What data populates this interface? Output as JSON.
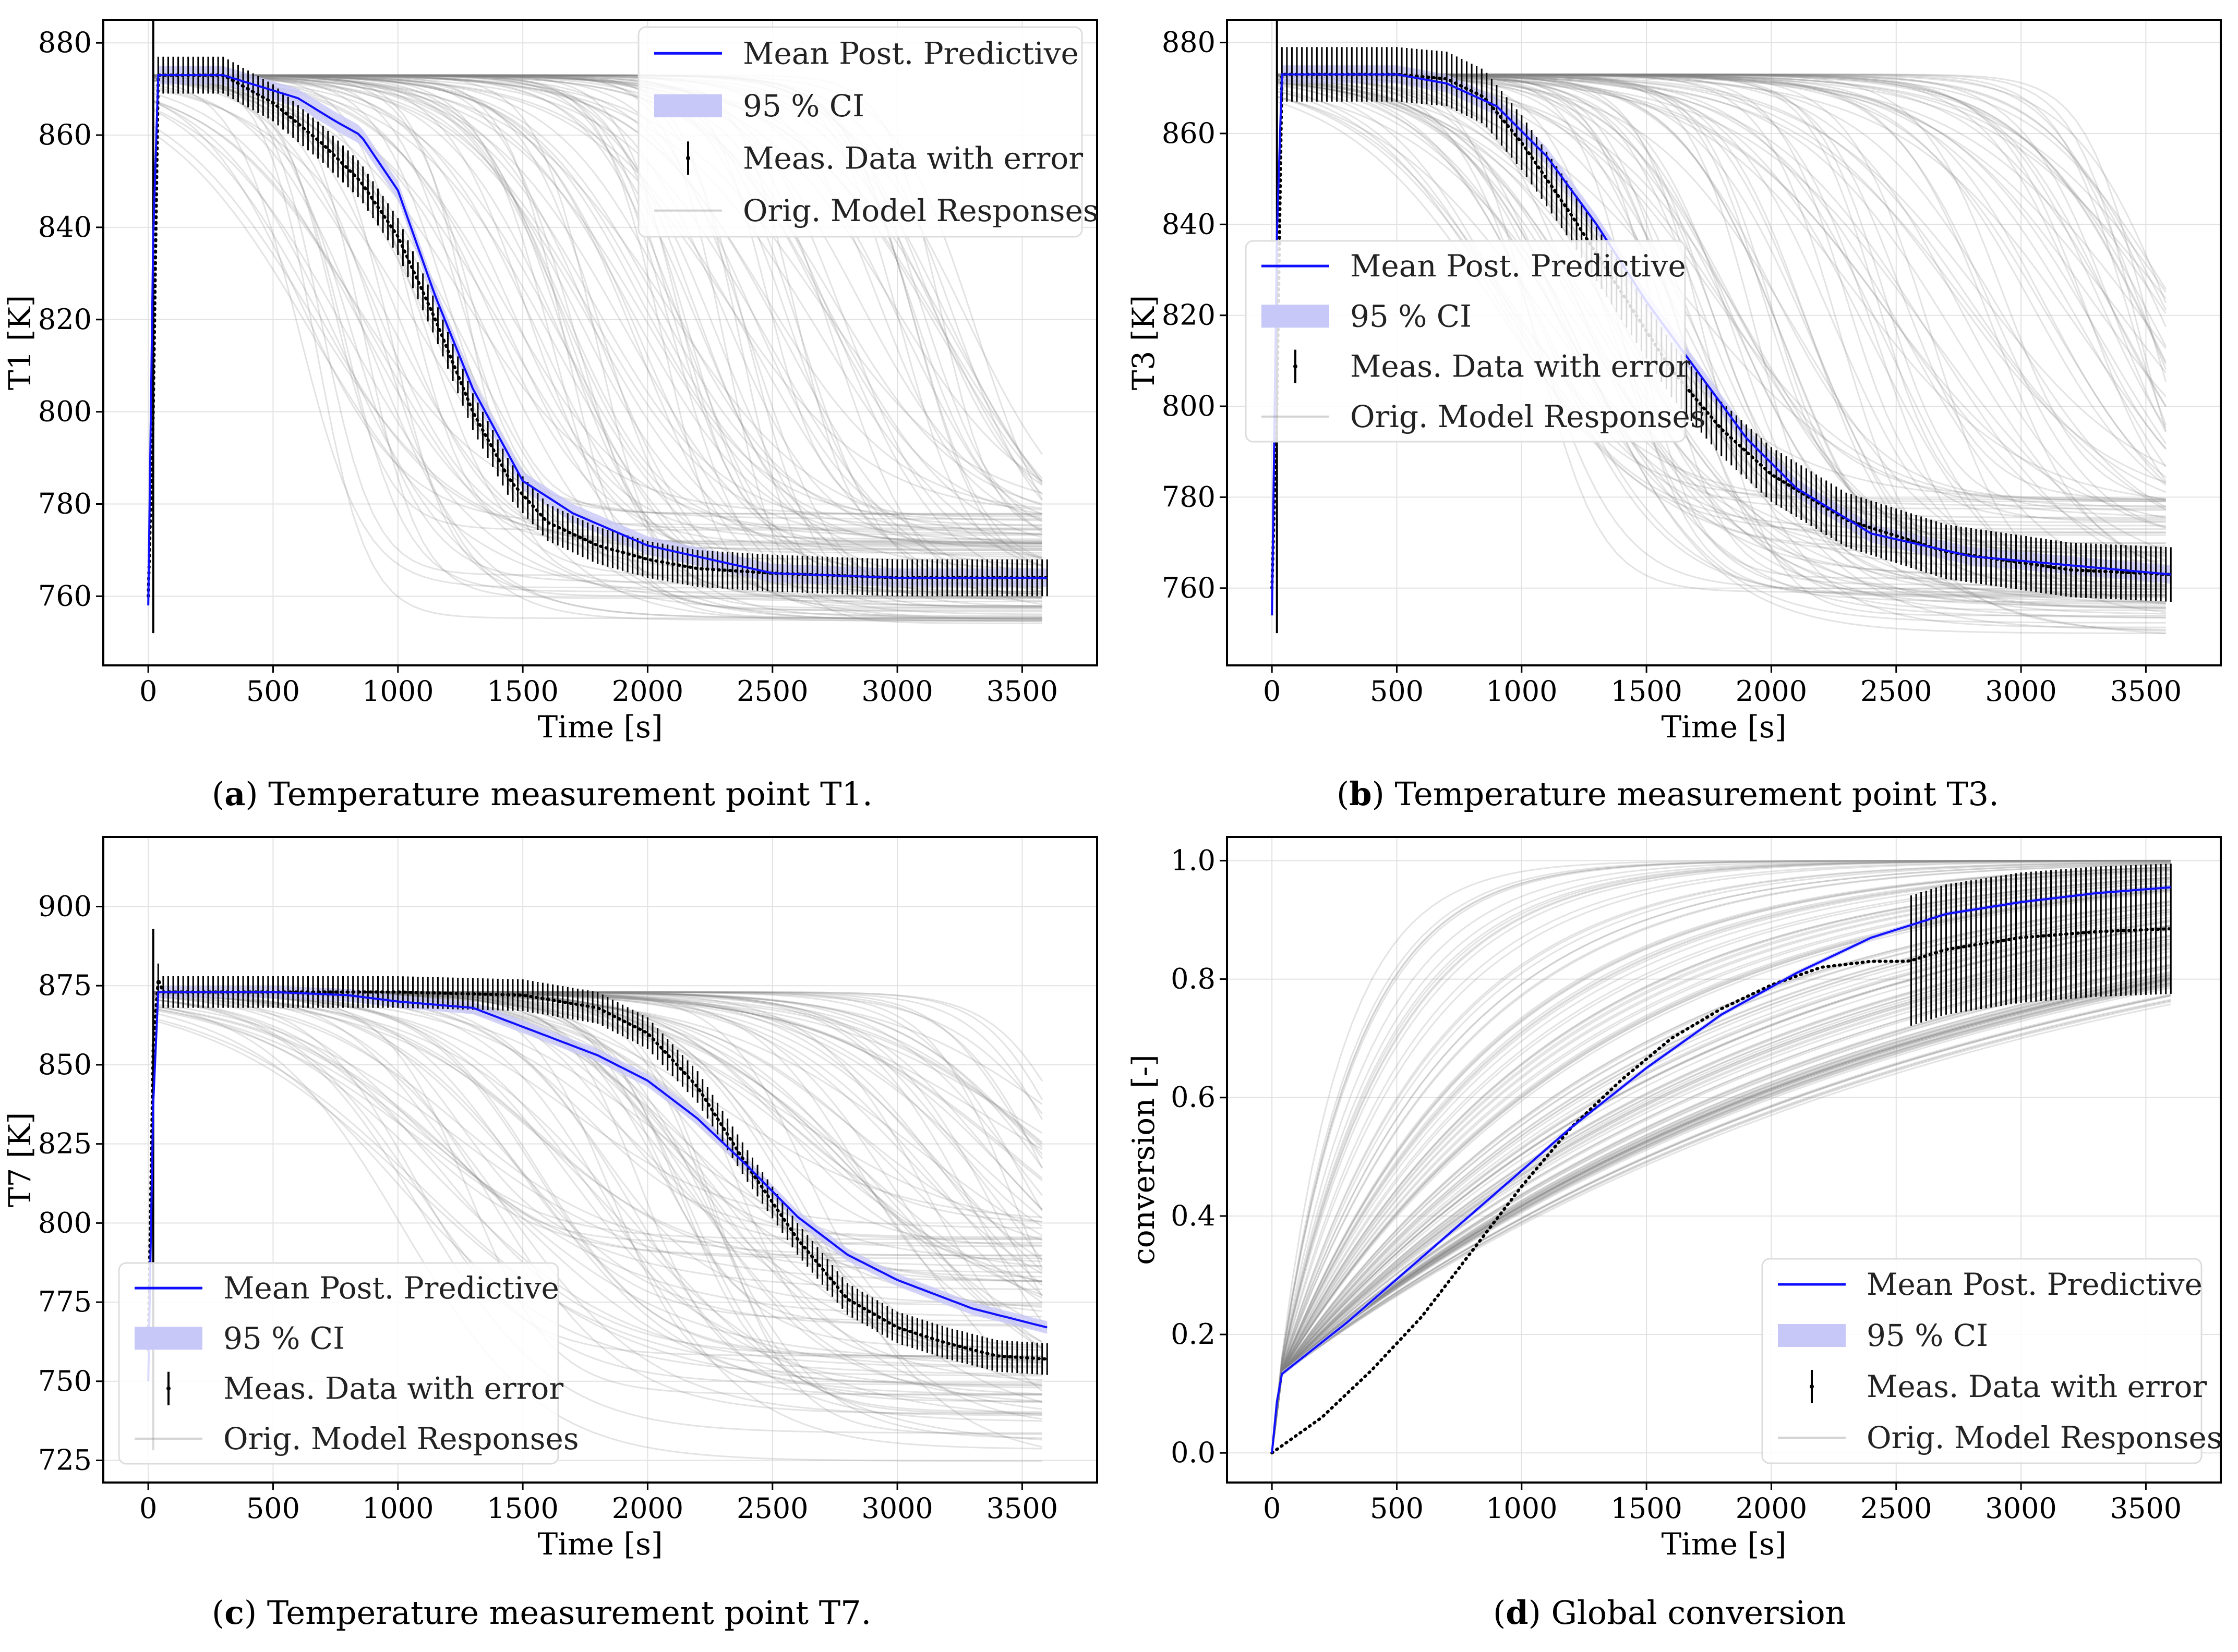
{
  "chart_data": [
    {
      "type": "line",
      "panel": "a",
      "ylabel": "T1 [K]",
      "xlabel": "Time [s]",
      "xlim": [
        -180,
        3800
      ],
      "ylim": [
        745,
        885
      ],
      "xticks": [
        0,
        500,
        1000,
        1500,
        2000,
        2500,
        3000,
        3500
      ],
      "yticks": [
        760,
        780,
        800,
        820,
        840,
        860,
        880
      ],
      "legend_position": "top-right",
      "mean_post_predictive": [
        [
          0,
          758
        ],
        [
          15,
          820
        ],
        [
          30,
          873
        ],
        [
          300,
          873
        ],
        [
          600,
          868
        ],
        [
          750,
          863
        ],
        [
          850,
          860
        ],
        [
          1000,
          848
        ],
        [
          1150,
          825
        ],
        [
          1300,
          805
        ],
        [
          1500,
          785
        ],
        [
          1700,
          778
        ],
        [
          2000,
          771
        ],
        [
          2500,
          765
        ],
        [
          3000,
          764
        ],
        [
          3600,
          764
        ]
      ],
      "ci_halfwidth": 2,
      "measured": [
        [
          0,
          760
        ],
        [
          20,
          800
        ],
        [
          40,
          873
        ],
        [
          300,
          873
        ],
        [
          500,
          867
        ],
        [
          700,
          858
        ],
        [
          850,
          850
        ],
        [
          1000,
          838
        ],
        [
          1150,
          820
        ],
        [
          1300,
          800
        ],
        [
          1450,
          785
        ],
        [
          1600,
          776
        ],
        [
          1800,
          771
        ],
        [
          2000,
          768
        ],
        [
          2200,
          766
        ],
        [
          2500,
          765
        ],
        [
          3000,
          764
        ],
        [
          3600,
          764
        ]
      ],
      "error_halfwidth": 4,
      "model_family": {
        "count": 120,
        "start": 873,
        "t_mid_range": [
          600,
          3400
        ],
        "width_range": [
          100,
          320
        ],
        "final_range": [
          754,
          778
        ]
      }
    },
    {
      "type": "line",
      "panel": "b",
      "ylabel": "T3 [K]",
      "xlabel": "Time [s]",
      "xlim": [
        -180,
        3800
      ],
      "ylim": [
        743,
        885
      ],
      "xticks": [
        0,
        500,
        1000,
        1500,
        2000,
        2500,
        3000,
        3500
      ],
      "yticks": [
        760,
        780,
        800,
        820,
        840,
        860,
        880
      ],
      "legend_position": "center-left",
      "mean_post_predictive": [
        [
          0,
          754
        ],
        [
          15,
          820
        ],
        [
          30,
          873
        ],
        [
          500,
          873
        ],
        [
          700,
          871
        ],
        [
          900,
          866
        ],
        [
          1100,
          855
        ],
        [
          1300,
          840
        ],
        [
          1500,
          823
        ],
        [
          1700,
          808
        ],
        [
          1900,
          793
        ],
        [
          2100,
          782
        ],
        [
          2400,
          772
        ],
        [
          2800,
          767
        ],
        [
          3200,
          765
        ],
        [
          3600,
          763
        ]
      ],
      "ci_halfwidth": 2,
      "measured": [
        [
          0,
          760
        ],
        [
          20,
          800
        ],
        [
          40,
          873
        ],
        [
          500,
          873
        ],
        [
          700,
          872
        ],
        [
          850,
          868
        ],
        [
          1000,
          858
        ],
        [
          1200,
          842
        ],
        [
          1400,
          825
        ],
        [
          1600,
          808
        ],
        [
          1800,
          795
        ],
        [
          2000,
          785
        ],
        [
          2300,
          775
        ],
        [
          2700,
          768
        ],
        [
          3200,
          764
        ],
        [
          3600,
          763
        ]
      ],
      "error_halfwidth": 6,
      "model_family": {
        "count": 120,
        "start": 873,
        "t_mid_range": [
          900,
          3700
        ],
        "width_range": [
          120,
          380
        ],
        "final_range": [
          749,
          780
        ]
      }
    },
    {
      "type": "line",
      "panel": "c",
      "ylabel": "T7 [K]",
      "xlabel": "Time [s]",
      "xlim": [
        -180,
        3800
      ],
      "ylim": [
        718,
        922
      ],
      "xticks": [
        0,
        500,
        1000,
        1500,
        2000,
        2500,
        3000,
        3500
      ],
      "yticks": [
        725,
        750,
        775,
        800,
        825,
        850,
        875,
        900
      ],
      "legend_position": "bottom-left",
      "mean_post_predictive": [
        [
          0,
          750
        ],
        [
          15,
          820
        ],
        [
          30,
          873
        ],
        [
          500,
          873
        ],
        [
          800,
          872
        ],
        [
          1000,
          870
        ],
        [
          1300,
          868
        ],
        [
          1500,
          862
        ],
        [
          1800,
          853
        ],
        [
          2000,
          845
        ],
        [
          2200,
          833
        ],
        [
          2400,
          818
        ],
        [
          2600,
          802
        ],
        [
          2800,
          790
        ],
        [
          3000,
          782
        ],
        [
          3300,
          773
        ],
        [
          3600,
          767
        ]
      ],
      "ci_halfwidth": 2,
      "measured": [
        [
          0,
          760
        ],
        [
          25,
          880
        ],
        [
          60,
          873
        ],
        [
          1000,
          873
        ],
        [
          1500,
          872
        ],
        [
          1800,
          868
        ],
        [
          2000,
          860
        ],
        [
          2200,
          843
        ],
        [
          2400,
          818
        ],
        [
          2600,
          795
        ],
        [
          2800,
          776
        ],
        [
          3000,
          767
        ],
        [
          3200,
          762
        ],
        [
          3400,
          758
        ],
        [
          3600,
          757
        ]
      ],
      "error_halfwidth": 5,
      "model_family": {
        "count": 120,
        "start": 873,
        "t_mid_range": [
          1000,
          3800
        ],
        "width_range": [
          150,
          420
        ],
        "final_range": [
          722,
          800
        ]
      }
    },
    {
      "type": "line",
      "panel": "d",
      "ylabel": "conversion [-]",
      "xlabel": "Time [s]",
      "xlim": [
        -180,
        3800
      ],
      "ylim": [
        -0.05,
        1.04
      ],
      "xticks": [
        0,
        500,
        1000,
        1500,
        2000,
        2500,
        3000,
        3500
      ],
      "yticks": [
        0.0,
        0.2,
        0.4,
        0.6,
        0.8,
        1.0
      ],
      "legend_position": "bottom-right",
      "mean_post_predictive": [
        [
          0,
          0.0
        ],
        [
          30,
          0.13
        ],
        [
          300,
          0.22
        ],
        [
          600,
          0.33
        ],
        [
          900,
          0.44
        ],
        [
          1200,
          0.55
        ],
        [
          1500,
          0.65
        ],
        [
          1800,
          0.74
        ],
        [
          2100,
          0.81
        ],
        [
          2400,
          0.87
        ],
        [
          2700,
          0.91
        ],
        [
          3000,
          0.93
        ],
        [
          3300,
          0.945
        ],
        [
          3600,
          0.955
        ]
      ],
      "ci_halfwidth": 0.004,
      "measured": [
        [
          0,
          0.0
        ],
        [
          100,
          0.03
        ],
        [
          200,
          0.06
        ],
        [
          400,
          0.14
        ],
        [
          600,
          0.23
        ],
        [
          800,
          0.34
        ],
        [
          1000,
          0.45
        ],
        [
          1200,
          0.55
        ],
        [
          1400,
          0.63
        ],
        [
          1600,
          0.7
        ],
        [
          1800,
          0.75
        ],
        [
          2000,
          0.79
        ],
        [
          2200,
          0.82
        ],
        [
          2400,
          0.83
        ],
        [
          2550,
          0.83
        ],
        [
          2700,
          0.85
        ],
        [
          3000,
          0.87
        ],
        [
          3300,
          0.88
        ],
        [
          3600,
          0.885
        ]
      ],
      "error_start": 2550,
      "error_halfwidth": 0.11,
      "model_family": {
        "count": 120,
        "start": 0.13,
        "tau_range": [
          250,
          2800
        ],
        "final": 1.0
      }
    }
  ],
  "legend": {
    "mean": "Mean Post. Predictive",
    "ci": "95 % CI",
    "meas": "Meas. Data with error",
    "orig": "Orig. Model Responses"
  },
  "captions": {
    "a": {
      "label": "a",
      "text": " Temperature measurement point T1."
    },
    "b": {
      "label": "b",
      "text": " Temperature measurement point T3."
    },
    "c": {
      "label": "c",
      "text": " Temperature measurement point T7."
    },
    "d": {
      "label": "d",
      "text": " Global conversion"
    }
  },
  "colors": {
    "mean": "#1010ff",
    "ci": "#c8c8f8",
    "meas": "#000000",
    "orig": "#808080",
    "grid": "#e2e2e2"
  }
}
